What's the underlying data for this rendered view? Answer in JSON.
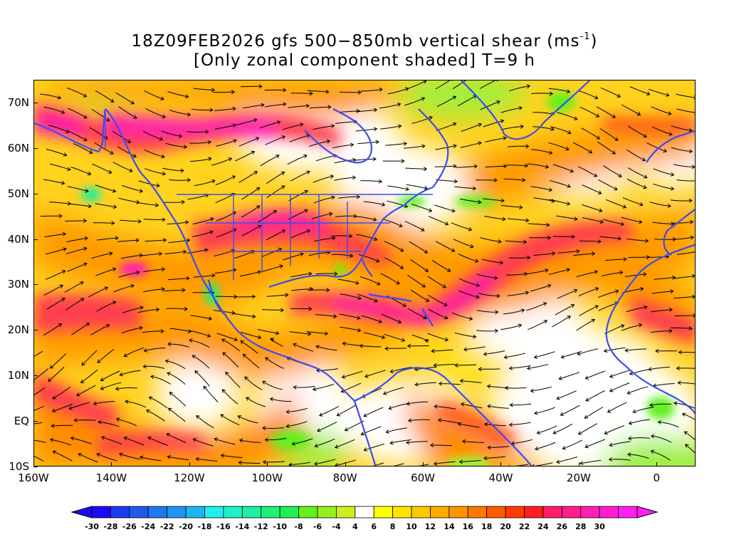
{
  "title": {
    "main_before_sup": "18Z09FEB2026 gfs 500−850mb vertical shear (ms",
    "sup": "-1",
    "main_after_sup": ")",
    "line2": "[Only zonal component shaded] T=9 h"
  },
  "map": {
    "projection": "lat-lon",
    "lon_range": [
      -160,
      10
    ],
    "lat_range": [
      -10,
      75
    ],
    "lat_labels": [
      {
        "lat": 70,
        "text": "70N"
      },
      {
        "lat": 60,
        "text": "60N"
      },
      {
        "lat": 50,
        "text": "50N"
      },
      {
        "lat": 40,
        "text": "40N"
      },
      {
        "lat": 30,
        "text": "30N"
      },
      {
        "lat": 20,
        "text": "20N"
      },
      {
        "lat": 10,
        "text": "10N"
      },
      {
        "lat": 0,
        "text": "EQ"
      },
      {
        "lat": -10,
        "text": "10S"
      }
    ],
    "lon_labels": [
      {
        "lon": -160,
        "text": "160W"
      },
      {
        "lon": -140,
        "text": "140W"
      },
      {
        "lon": -120,
        "text": "120W"
      },
      {
        "lon": -100,
        "text": "100W"
      },
      {
        "lon": -80,
        "text": "80W"
      },
      {
        "lon": -60,
        "text": "60W"
      },
      {
        "lon": -40,
        "text": "40W"
      },
      {
        "lon": -20,
        "text": "20W"
      },
      {
        "lon": 0,
        "text": "0"
      }
    ],
    "coastline_color": "#3c4cf0",
    "streamline_color": "#000000"
  },
  "colorbar": {
    "levels": [
      -30,
      -28,
      -26,
      -24,
      -22,
      -20,
      -18,
      -16,
      -14,
      -12,
      -10,
      -8,
      -6,
      -4,
      4,
      6,
      8,
      10,
      12,
      14,
      16,
      18,
      20,
      22,
      24,
      26,
      28,
      30
    ],
    "labels": [
      "-30",
      "-28",
      "-26",
      "-24",
      "-22",
      "-20",
      "-18",
      "-16",
      "-14",
      "-12",
      "-10",
      "-8",
      "-6",
      "-4",
      "4",
      "6",
      "8",
      "10",
      "12",
      "14",
      "16",
      "18",
      "20",
      "22",
      "24",
      "26",
      "28",
      "30"
    ],
    "colors": [
      "#1e0af0",
      "#1e3cf0",
      "#1e5af0",
      "#1e78f0",
      "#1e96f0",
      "#1eb4f0",
      "#1ef0f0",
      "#1ef0c8",
      "#1ef0a0",
      "#1ef078",
      "#1ef050",
      "#64f01e",
      "#96f01e",
      "#c8f01e",
      "#ffffff",
      "#ffff00",
      "#ffe600",
      "#ffc800",
      "#ffaa00",
      "#ff9600",
      "#ff7800",
      "#ff5a00",
      "#ff3c00",
      "#ff1e1e",
      "#ff1e64",
      "#ff1e8c",
      "#ff1eb4",
      "#ff1ed2",
      "#ff1ef0"
    ],
    "under_color": "#1e0af0",
    "over_color": "#ff1ef0"
  }
}
